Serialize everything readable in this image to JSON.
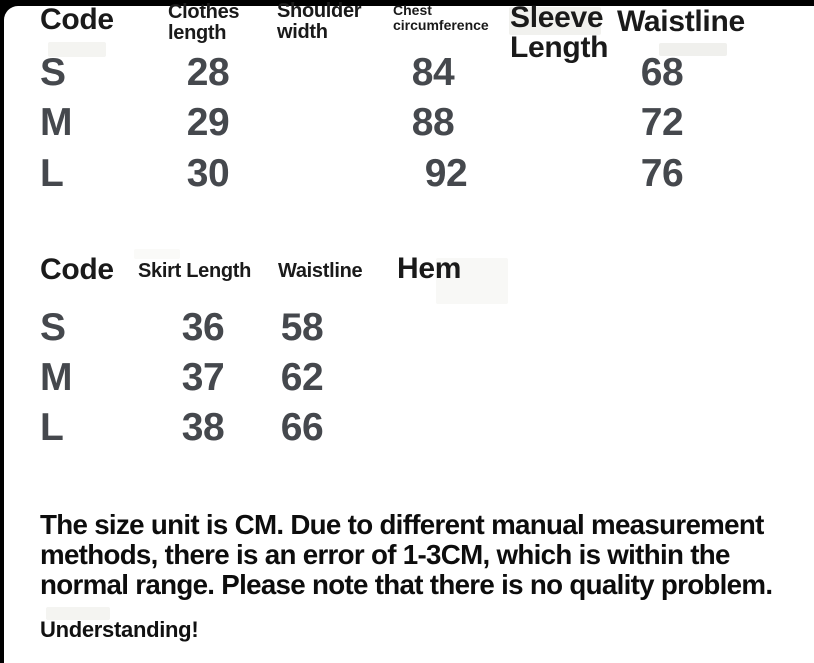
{
  "frame": {
    "border_color": "#000000",
    "sheet_background": "#ffffff"
  },
  "colors": {
    "header_text": "#1a1a1a",
    "value_text": "#45484d",
    "note_text": "#0d0d0d"
  },
  "size_chart_top": {
    "headers": [
      "Code",
      "Clothes\nlength",
      "Shoulder\nwidth",
      "Chest\ncircumference",
      "Sleeve\nLength",
      "Waistline"
    ],
    "rows": [
      [
        "S",
        "28",
        "",
        "84",
        "",
        "68"
      ],
      [
        "M",
        "29",
        "",
        "88",
        "",
        "72"
      ],
      [
        "L",
        "30",
        "",
        "92",
        "",
        "76"
      ]
    ]
  },
  "size_chart_bottom": {
    "headers": [
      "Code",
      "Skirt Length",
      "Waistline",
      "Hem"
    ],
    "rows": [
      [
        "S",
        "36",
        "58",
        ""
      ],
      [
        "M",
        "37",
        "62",
        ""
      ],
      [
        "L",
        "38",
        "66",
        ""
      ]
    ]
  },
  "note": {
    "lines": [
      "The size unit is CM. Due to different manual measurement",
      "methods, there is an error of 1-3CM, which is within the",
      "normal range. Please note that there is no quality problem."
    ]
  },
  "footer": {
    "text": "Understanding!"
  }
}
